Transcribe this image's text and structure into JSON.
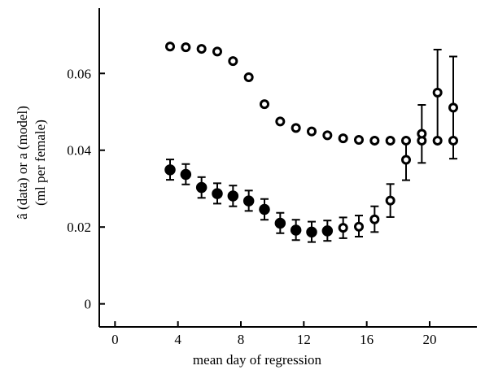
{
  "chart_data": {
    "type": "scatter",
    "xlabel": "mean day of regression",
    "ylabel_line1": "â (data) or a (model)",
    "ylabel_line2": "(ml per female)",
    "xlim": [
      -1,
      23
    ],
    "ylim": [
      -0.006,
      0.077
    ],
    "xticks": [
      0,
      4,
      8,
      12,
      16,
      20
    ],
    "yticks": [
      0,
      0.02,
      0.04,
      0.06
    ],
    "ytick_labels": [
      "0",
      "0.02",
      "0.04",
      "0.06"
    ],
    "grid": false,
    "series": [
      {
        "marker": "open",
        "x": [
          3.5,
          4.5,
          5.5,
          6.5,
          7.5,
          8.5,
          9.5,
          10.5,
          11.5,
          12.5,
          13.5,
          14.5,
          15.5,
          16.5,
          17.5,
          18.5,
          19.5,
          20.5,
          21.5
        ],
        "y": [
          0.067,
          0.0668,
          0.0664,
          0.0657,
          0.0632,
          0.059,
          0.052,
          0.0475,
          0.0458,
          0.0449,
          0.0439,
          0.0431,
          0.0427,
          0.0425,
          0.0425,
          0.0425,
          0.0425,
          0.0425,
          0.0425
        ]
      },
      {
        "marker": "filled",
        "x": [
          3.5,
          4.5,
          5.5,
          6.5,
          7.5,
          8.5,
          9.5,
          10.5,
          11.5,
          12.5,
          13.5
        ],
        "y": [
          0.0349,
          0.0337,
          0.0303,
          0.0287,
          0.0281,
          0.0268,
          0.0246,
          0.021,
          0.0192,
          0.0187,
          0.019
        ],
        "err_low": [
          0.0323,
          0.0311,
          0.0276,
          0.0261,
          0.0254,
          0.0242,
          0.0219,
          0.0184,
          0.0166,
          0.0161,
          0.0164
        ],
        "err_high": [
          0.0376,
          0.0364,
          0.033,
          0.0314,
          0.0308,
          0.0295,
          0.0273,
          0.0237,
          0.0219,
          0.0214,
          0.0217
        ]
      },
      {
        "marker": "open",
        "x": [
          14.5,
          15.5,
          16.5,
          17.5,
          18.5,
          19.5,
          20.5,
          21.5
        ],
        "y": [
          0.0198,
          0.0201,
          0.022,
          0.0269,
          0.0375,
          0.0443,
          0.055,
          0.0511
        ],
        "err_low": [
          0.0171,
          0.0175,
          0.0187,
          0.0226,
          0.0322,
          0.0367,
          0.0425,
          0.0378
        ],
        "err_high": [
          0.0225,
          0.023,
          0.0254,
          0.0312,
          0.0427,
          0.0518,
          0.0662,
          0.0644
        ]
      }
    ]
  }
}
